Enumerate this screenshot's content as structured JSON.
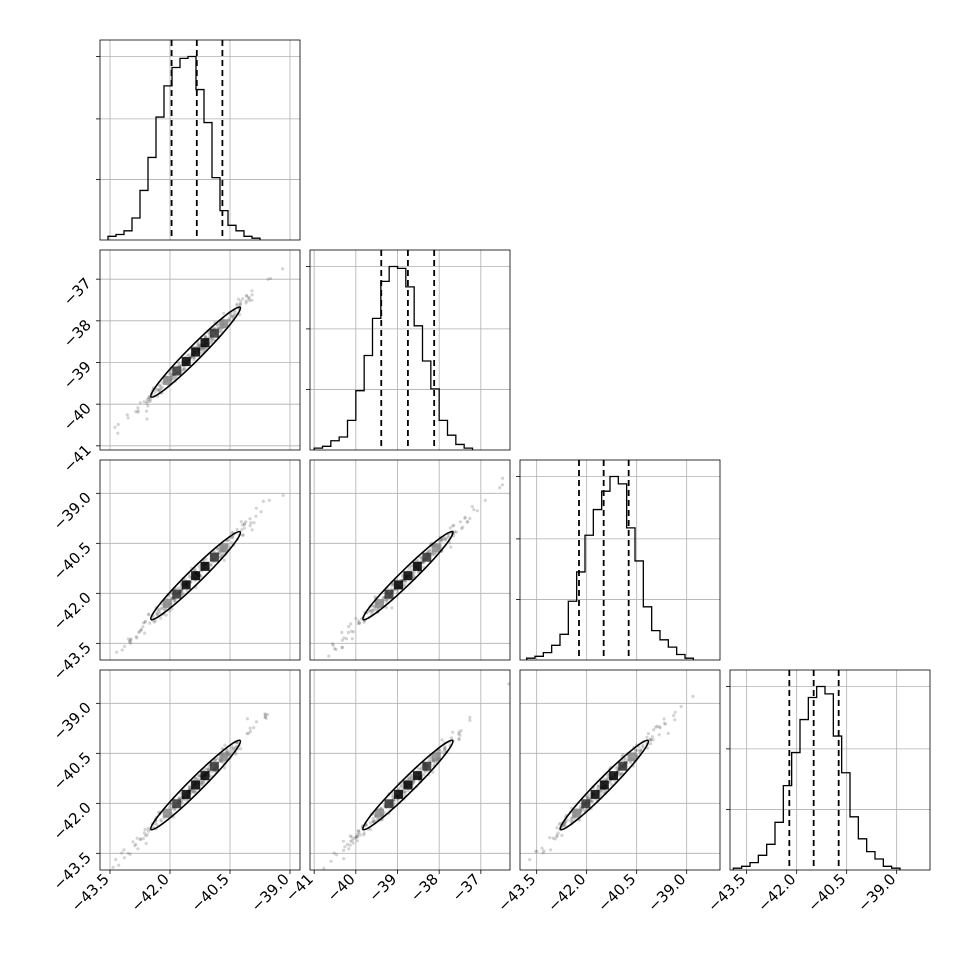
{
  "chart_data": {
    "type": "scatter",
    "kind": "corner",
    "title": "",
    "grid": true,
    "n_params": 4,
    "parameters": [
      {
        "ticks": [
          -43.5,
          -42.0,
          -40.5,
          -39.0
        ],
        "tick_labels": [
          "−43.5",
          "−42.0",
          "−40.5",
          "−39.0"
        ],
        "range": [
          -43.75,
          -38.75
        ],
        "mean": -41.36,
        "sigma": 0.56,
        "quantiles": [
          -41.96,
          -41.33,
          -40.69
        ]
      },
      {
        "ticks": [
          -41,
          -40,
          -39,
          -38,
          -37
        ],
        "tick_labels": [
          "−41",
          "−40",
          "−39",
          "−38",
          "−37"
        ],
        "range": [
          -41.1,
          -36.3
        ],
        "mean": -38.75,
        "sigma": 0.54,
        "quantiles": [
          -39.39,
          -38.75,
          -38.12
        ]
      },
      {
        "ticks": [
          -43.5,
          -42.0,
          -40.5,
          -39.0
        ],
        "tick_labels": [
          "−43.5",
          "−42.0",
          "−40.5",
          "−39.0"
        ],
        "range": [
          -44.0,
          -38.0
        ],
        "mean": -41.47,
        "sigma": 0.66,
        "quantiles": [
          -42.23,
          -41.49,
          -40.74
        ]
      },
      {
        "ticks": [
          -43.5,
          -42.0,
          -40.5,
          -39.0
        ],
        "tick_labels": [
          "−43.5",
          "−42.0",
          "−40.5",
          "−39.0"
        ],
        "range": [
          -44.0,
          -38.0
        ],
        "mean": -41.45,
        "sigma": 0.67,
        "quantiles": [
          -42.22,
          -41.49,
          -40.74
        ]
      }
    ],
    "histograms": [
      {
        "param": 0,
        "edges_from": -43.55,
        "bin_width": 0.2,
        "counts": [
          0.02,
          0.03,
          0.05,
          0.12,
          0.27,
          0.45,
          0.67,
          0.84,
          0.94,
          0.99,
          1.0,
          0.82,
          0.64,
          0.34,
          0.16,
          0.08,
          0.05,
          0.02,
          0.01
        ]
      },
      {
        "param": 1,
        "edges_from": -41.0,
        "bin_width": 0.2,
        "counts": [
          0.01,
          0.02,
          0.05,
          0.07,
          0.16,
          0.32,
          0.51,
          0.71,
          0.91,
          0.99,
          0.98,
          0.88,
          0.67,
          0.48,
          0.33,
          0.16,
          0.08,
          0.03,
          0.01
        ]
      },
      {
        "param": 2,
        "edges_from": -43.8,
        "bin_width": 0.25,
        "counts": [
          0.01,
          0.02,
          0.04,
          0.08,
          0.14,
          0.32,
          0.48,
          0.68,
          0.82,
          0.92,
          1.0,
          0.96,
          0.72,
          0.54,
          0.29,
          0.16,
          0.11,
          0.07,
          0.03,
          0.01
        ]
      },
      {
        "param": 3,
        "edges_from": -43.9,
        "bin_width": 0.25,
        "counts": [
          0.01,
          0.02,
          0.04,
          0.08,
          0.14,
          0.26,
          0.46,
          0.64,
          0.82,
          0.94,
          1.0,
          0.96,
          0.73,
          0.53,
          0.29,
          0.17,
          0.1,
          0.06,
          0.02,
          0.01
        ]
      }
    ],
    "pairs": [
      {
        "x_param": 0,
        "y_param": 1,
        "correlation": 0.99
      },
      {
        "x_param": 0,
        "y_param": 2,
        "correlation": 0.99
      },
      {
        "x_param": 1,
        "y_param": 2,
        "correlation": 0.99
      },
      {
        "x_param": 0,
        "y_param": 3,
        "correlation": 0.99
      },
      {
        "x_param": 1,
        "y_param": 3,
        "correlation": 0.99
      },
      {
        "x_param": 2,
        "y_param": 3,
        "correlation": 0.99
      }
    ]
  }
}
